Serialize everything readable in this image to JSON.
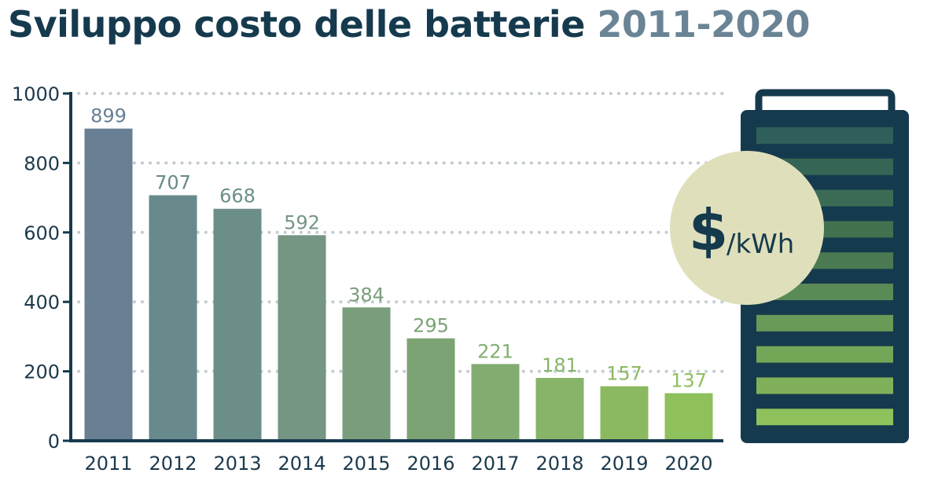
{
  "title": {
    "text": "Sviluppo costo delle batterie",
    "years": "2011-2020"
  },
  "chart_data": {
    "type": "bar",
    "title": "Sviluppo costo delle batterie 2011-2020",
    "unit_label": {
      "symbol": "$",
      "suffix": "/kWh"
    },
    "categories": [
      "2011",
      "2012",
      "2013",
      "2014",
      "2015",
      "2016",
      "2017",
      "2018",
      "2019",
      "2020"
    ],
    "values": [
      899,
      707,
      668,
      592,
      384,
      295,
      221,
      181,
      157,
      137
    ],
    "data_labels": [
      "899",
      "707",
      "668",
      "592",
      "384",
      "295",
      "221",
      "181",
      "157",
      "137"
    ],
    "bar_colors": [
      "#687f94",
      "#688a8c",
      "#6b8f88",
      "#749683",
      "#7a9e7b",
      "#7ba374",
      "#83ad70",
      "#87b468",
      "#8bb962",
      "#8ec05c"
    ],
    "yticks": [
      0,
      200,
      400,
      600,
      800,
      1000
    ],
    "ylim": [
      0,
      1000
    ],
    "grid": "dotted horizontal",
    "xlabel": "",
    "ylabel": ""
  },
  "battery_icon": {
    "body_color": "#163a4d",
    "cell_colors": [
      "#2f5f5a",
      "#356555",
      "#3b6b55",
      "#41714f",
      "#4b7a52",
      "#5a8a55",
      "#699a57",
      "#74a658",
      "#80b15a",
      "#8ec05c"
    ],
    "badge_color": "#dfe0bb"
  }
}
